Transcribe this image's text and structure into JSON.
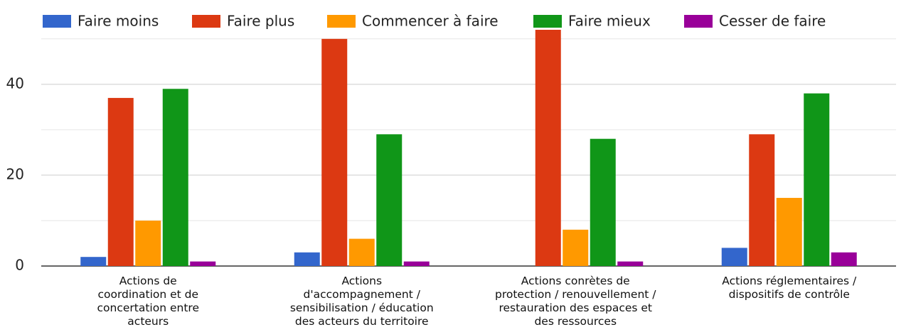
{
  "chart_data": {
    "type": "bar",
    "categories": [
      "Actions de\ncoordination et de\nconcertation entre\nacteurs",
      "Actions\nd'accompagnement /\nsensibilisation / éducation\ndes acteurs du territoire",
      "Actions conrètes de\nprotection / renouvellement /\nrestauration des espaces et\ndes ressources",
      "Actions réglementaires /\ndispositifs de contrôle"
    ],
    "series": [
      {
        "name": "Faire moins",
        "color": "#3366cc",
        "values": [
          2,
          3,
          0,
          4
        ]
      },
      {
        "name": "Faire plus",
        "color": "#dc3912",
        "values": [
          37,
          50,
          52,
          29
        ]
      },
      {
        "name": "Commencer à faire",
        "color": "#ff9900",
        "values": [
          10,
          6,
          8,
          15
        ]
      },
      {
        "name": "Faire mieux",
        "color": "#109618",
        "values": [
          39,
          29,
          28,
          38
        ]
      },
      {
        "name": "Cesser de faire",
        "color": "#990099",
        "values": [
          1,
          1,
          1,
          3
        ]
      }
    ],
    "ylim": [
      0,
      52
    ],
    "yticks": [
      0,
      20,
      40
    ],
    "minor_yticks": [
      10,
      30,
      50
    ],
    "grid": true,
    "legend": "top"
  }
}
